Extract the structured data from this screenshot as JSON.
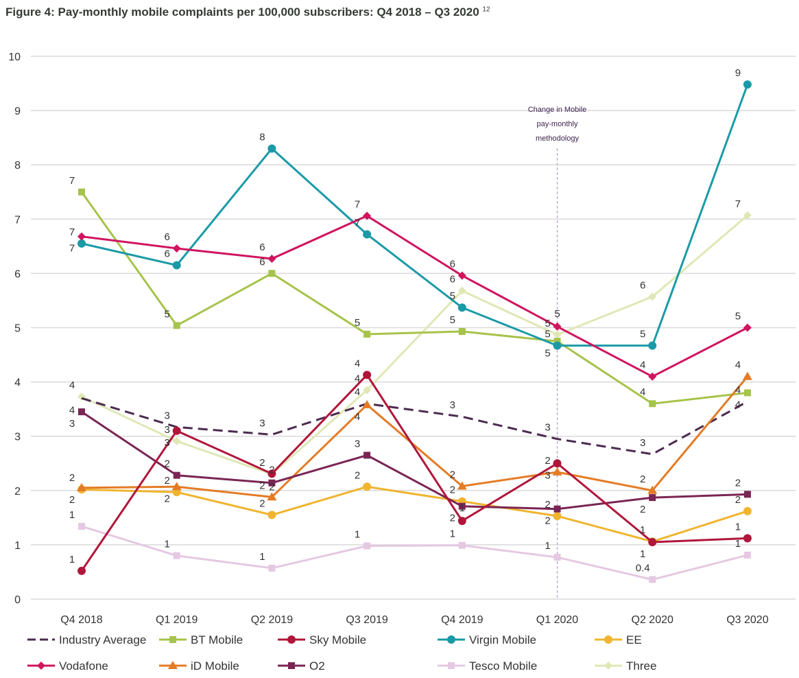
{
  "chart_data": {
    "type": "line",
    "title": "Figure 4: Pay-monthly mobile complaints per 100,000 subscribers: Q4 2018 – Q3 2020",
    "title_footnote": "12",
    "categories": [
      "Q4 2018",
      "Q1 2019",
      "Q2 2019",
      "Q3 2019",
      "Q4 2019",
      "Q1 2020",
      "Q2 2020",
      "Q3 2020"
    ],
    "ylim": [
      0,
      10
    ],
    "yticks": [
      0,
      1,
      2,
      3,
      4,
      5,
      6,
      7,
      8,
      9,
      10
    ],
    "grid": "horizontal",
    "legend_position": "bottom",
    "annotation": {
      "lines": [
        "Change in Mobile",
        "pay-monthly",
        "methodology"
      ],
      "at_category": "Q1 2020"
    },
    "series": [
      {
        "name": "Industry Average",
        "color": "#4b2a4f",
        "marker": "none",
        "dash": true,
        "values": [
          3.7,
          3.17,
          3.03,
          3.6,
          3.36,
          2.95,
          2.67,
          3.64
        ],
        "labels": [
          "4",
          "3",
          "3",
          "4",
          "3",
          "3",
          "3",
          "4"
        ]
      },
      {
        "name": "BT Mobile",
        "color": "#a6c34a",
        "marker": "square",
        "values": [
          7.5,
          5.04,
          6.0,
          4.88,
          4.93,
          4.75,
          3.6,
          3.8
        ],
        "labels": [
          "7",
          "5",
          "6",
          "5",
          "5",
          "5",
          "4",
          "4"
        ]
      },
      {
        "name": "Sky Mobile",
        "color": "#b0163a",
        "marker": "circle",
        "values": [
          0.52,
          3.1,
          2.31,
          4.13,
          1.44,
          2.5,
          1.05,
          1.12
        ],
        "labels": [
          "1",
          "3",
          "2",
          "4",
          "1",
          "3",
          "1",
          "1"
        ]
      },
      {
        "name": "Virgin Mobile",
        "color": "#1a9aa6",
        "marker": "circle",
        "values": [
          6.55,
          6.15,
          8.3,
          6.72,
          5.37,
          4.67,
          4.67,
          9.48
        ],
        "labels": [
          "7",
          "6",
          "8",
          "7",
          "5",
          "5",
          "5",
          "9"
        ]
      },
      {
        "name": "EE",
        "color": "#f0b42f",
        "marker": "circle",
        "values": [
          2.02,
          1.97,
          1.55,
          2.07,
          1.8,
          1.53,
          1.06,
          1.62
        ],
        "labels": [
          "2",
          "2",
          "2",
          "2",
          "2",
          "2",
          "1",
          "2"
        ]
      },
      {
        "name": "Vodafone",
        "color": "#d0145f",
        "marker": "diamond",
        "values": [
          6.68,
          6.46,
          6.27,
          7.06,
          5.96,
          5.02,
          4.1,
          5.0
        ],
        "labels": [
          "7",
          "6",
          "6",
          "7",
          "6",
          "5",
          "4",
          "5"
        ]
      },
      {
        "name": "iD Mobile",
        "color": "#e47b25",
        "marker": "triangle",
        "values": [
          2.05,
          2.07,
          1.88,
          3.58,
          2.08,
          2.34,
          2.0,
          4.1
        ],
        "labels": [
          "2",
          "2",
          "2",
          "4",
          "2",
          "2",
          "2",
          "4"
        ]
      },
      {
        "name": "O2",
        "color": "#7a2554",
        "marker": "square",
        "values": [
          3.45,
          2.28,
          2.14,
          2.65,
          1.71,
          1.66,
          1.87,
          1.93
        ],
        "labels": [
          "3",
          "2",
          "2",
          "3",
          "2",
          "2",
          "2",
          "2"
        ]
      },
      {
        "name": "Tesco Mobile",
        "color": "#e5c8e2",
        "marker": "square",
        "values": [
          1.34,
          0.8,
          0.57,
          0.98,
          0.99,
          0.77,
          0.36,
          0.81
        ],
        "labels": [
          "1",
          "1",
          "1",
          "1",
          "1",
          "1",
          "0.4",
          "1"
        ]
      },
      {
        "name": "Three",
        "color": "#dfe8b5",
        "marker": "diamond",
        "values": [
          3.73,
          2.91,
          2.3,
          3.85,
          5.68,
          4.87,
          5.57,
          7.07
        ],
        "labels": [
          "4",
          "3",
          "2",
          "4",
          "6",
          "5",
          "6",
          "7"
        ]
      }
    ]
  }
}
